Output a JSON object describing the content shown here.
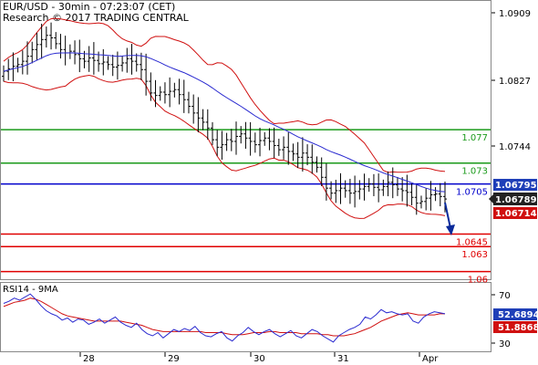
{
  "header": {
    "title": "EUR/USD - 30min - 07:23:07 (CET)",
    "subtitle": "Research © 2017 TRADING CENTRAL"
  },
  "colors": {
    "candles": "#000000",
    "ma": "#2a2ad0",
    "bands": "#d01010",
    "support": "#e00000",
    "resistance_green": "#1a9a1a",
    "pivot": "#0000cc",
    "arrow": "#0a2a9a",
    "badge_dark": "#222222",
    "badge_blue": "#1f3fb8",
    "badge_red": "#d01010"
  },
  "chart_data": [
    {
      "type": "candlestick",
      "x_ticks": [
        "28",
        "29",
        "30",
        "31",
        "Apr"
      ],
      "y_ticks": [
        "1.0909",
        "1.0827",
        "1.0744"
      ],
      "ylim": [
        1.0592,
        1.0921
      ],
      "close": [
        1.084,
        1.0843,
        1.0846,
        1.0848,
        1.0852,
        1.0858,
        1.0866,
        1.0872,
        1.0878,
        1.0883,
        1.088,
        1.0873,
        1.0866,
        1.0862,
        1.0864,
        1.086,
        1.0855,
        1.0852,
        1.0856,
        1.0853,
        1.0849,
        1.0851,
        1.0848,
        1.0845,
        1.0847,
        1.085,
        1.0855,
        1.0852,
        1.0848,
        1.0842,
        1.0828,
        1.0814,
        1.0811,
        1.0815,
        1.0812,
        1.0816,
        1.0818,
        1.0812,
        1.0806,
        1.0798,
        1.079,
        1.0784,
        1.0779,
        1.0772,
        1.0758,
        1.0749,
        1.0752,
        1.0758,
        1.0756,
        1.0762,
        1.0765,
        1.076,
        1.0756,
        1.0752,
        1.0757,
        1.076,
        1.0756,
        1.0751,
        1.0746,
        1.0749,
        1.0744,
        1.0741,
        1.0737,
        1.0742,
        1.0737,
        1.0731,
        1.0725,
        1.0713,
        1.07,
        1.0694,
        1.0697,
        1.07,
        1.0697,
        1.0694,
        1.0696,
        1.0699,
        1.0702,
        1.0705,
        1.0701,
        1.0698,
        1.0702,
        1.0707,
        1.0704,
        1.0699,
        1.0697,
        1.0695,
        1.0689,
        1.0682,
        1.0684,
        1.0688,
        1.0692,
        1.0693,
        1.069,
        1.0687
      ],
      "ma_label": "9MA",
      "levels": [
        {
          "value": 1.077,
          "label": "1.077",
          "role": "resistance"
        },
        {
          "value": 1.073,
          "label": "1.073",
          "role": "resistance"
        },
        {
          "value": 1.0705,
          "label": "1.0705",
          "role": "pivot"
        },
        {
          "value": 1.0645,
          "label": "1.0645",
          "role": "support"
        },
        {
          "value": 1.063,
          "label": "1.063",
          "role": "support"
        },
        {
          "value": 1.06,
          "label": "1.06",
          "role": "support"
        }
      ],
      "badges": [
        "1.06795",
        "1.06789",
        "1.06714"
      ],
      "forecast": "down"
    },
    {
      "type": "line",
      "title": "RSI14 - 9MA",
      "y_ticks": [
        "70",
        "30"
      ],
      "ylim": [
        20,
        82
      ],
      "series": [
        {
          "name": "RSI14",
          "values": [
            65,
            67,
            70,
            68,
            71,
            74,
            69,
            63,
            58,
            55,
            53,
            49,
            51,
            47,
            50,
            49,
            45,
            47,
            50,
            46,
            49,
            52,
            47,
            44,
            42,
            46,
            40,
            36,
            34,
            37,
            32,
            36,
            40,
            38,
            41,
            39,
            43,
            37,
            34,
            33,
            36,
            38,
            32,
            29,
            34,
            37,
            42,
            38,
            35,
            38,
            40,
            36,
            33,
            36,
            39,
            34,
            32,
            36,
            40,
            38,
            34,
            31,
            28,
            34,
            37,
            40,
            42,
            45,
            52,
            50,
            54,
            59,
            56,
            57,
            55,
            54,
            55,
            48,
            46,
            52,
            55,
            57,
            56,
            55
          ]
        },
        {
          "name": "9MA",
          "values": [
            62,
            64,
            66,
            67,
            68,
            70,
            69,
            67,
            64,
            61,
            58,
            55,
            53,
            52,
            51,
            50,
            49,
            48,
            48,
            48,
            48,
            48,
            48,
            47,
            46,
            45,
            44,
            42,
            40,
            39,
            38,
            38,
            38,
            38,
            38,
            38,
            38,
            38,
            37,
            37,
            37,
            37,
            36,
            35,
            35,
            35,
            36,
            37,
            37,
            37,
            38,
            38,
            37,
            37,
            37,
            37,
            36,
            36,
            36,
            36,
            35,
            35,
            34,
            34,
            34,
            35,
            36,
            38,
            40,
            42,
            45,
            48,
            50,
            52,
            54,
            55,
            56,
            55,
            54,
            54,
            54,
            54,
            55,
            55
          ]
        }
      ],
      "badges": [
        "52.6894",
        "51.8868"
      ]
    }
  ]
}
